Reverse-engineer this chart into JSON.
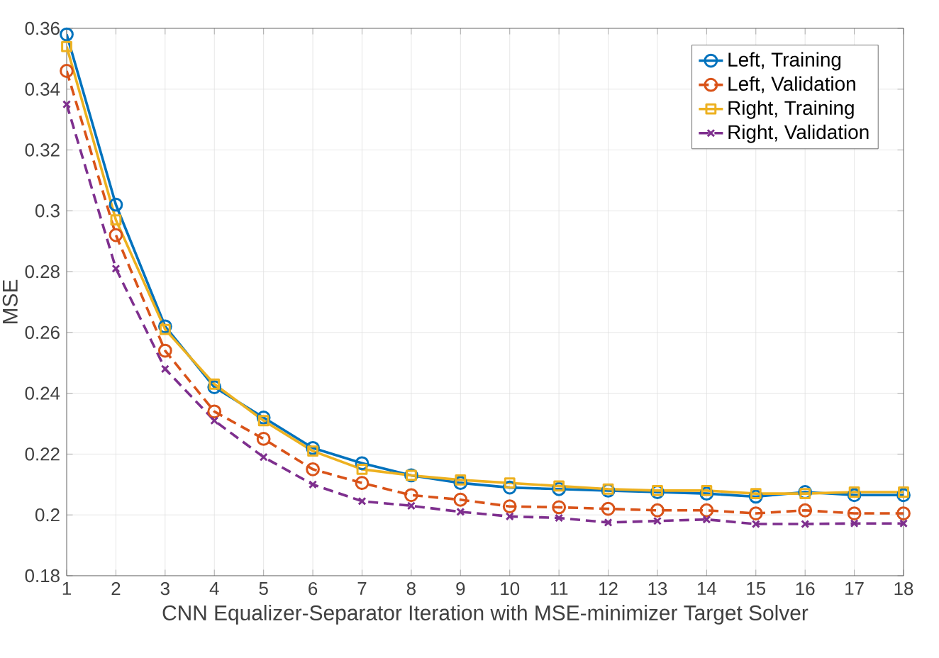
{
  "chart_data": {
    "type": "line",
    "xlabel": "CNN Equalizer-Separator Iteration with MSE-minimizer Target Solver",
    "ylabel": "MSE",
    "x": [
      1,
      2,
      3,
      4,
      5,
      6,
      7,
      8,
      9,
      10,
      11,
      12,
      13,
      14,
      15,
      16,
      17,
      18
    ],
    "series": [
      {
        "name": "Left, Training",
        "color": "#0072bd",
        "marker": "circle",
        "line_style": "solid",
        "values": [
          0.358,
          0.302,
          0.262,
          0.242,
          0.232,
          0.222,
          0.217,
          0.213,
          0.2105,
          0.209,
          0.2085,
          0.208,
          0.2075,
          0.207,
          0.206,
          0.2075,
          0.2065,
          0.2065
        ]
      },
      {
        "name": "Left, Validation",
        "color": "#d95319",
        "marker": "circle",
        "line_style": "dashed",
        "values": [
          0.346,
          0.292,
          0.254,
          0.234,
          0.225,
          0.215,
          0.2105,
          0.2065,
          0.205,
          0.2028,
          0.2025,
          0.202,
          0.2015,
          0.2015,
          0.2005,
          0.2015,
          0.2005,
          0.2005
        ]
      },
      {
        "name": "Right, Training",
        "color": "#edb120",
        "marker": "square",
        "line_style": "solid",
        "values": [
          0.354,
          0.297,
          0.261,
          0.243,
          0.231,
          0.221,
          0.215,
          0.213,
          0.2115,
          0.2105,
          0.2095,
          0.2085,
          0.208,
          0.208,
          0.207,
          0.207,
          0.2075,
          0.2075
        ]
      },
      {
        "name": "Right, Validation",
        "color": "#7e2f8e",
        "marker": "cross",
        "line_style": "dashed",
        "values": [
          0.335,
          0.281,
          0.248,
          0.231,
          0.219,
          0.21,
          0.2045,
          0.203,
          0.201,
          0.1995,
          0.199,
          0.1975,
          0.198,
          0.1985,
          0.197,
          0.197,
          0.1972,
          0.1972
        ]
      }
    ],
    "xlim": [
      1,
      18
    ],
    "xticks": [
      1,
      2,
      3,
      4,
      5,
      6,
      7,
      8,
      9,
      10,
      11,
      12,
      13,
      14,
      15,
      16,
      17,
      18
    ],
    "ylim": [
      0.18,
      0.36
    ],
    "yticks": [
      0.18,
      0.2,
      0.22,
      0.24,
      0.26,
      0.28,
      0.3,
      0.32,
      0.34,
      0.36
    ],
    "grid": true,
    "legend": "top right"
  }
}
